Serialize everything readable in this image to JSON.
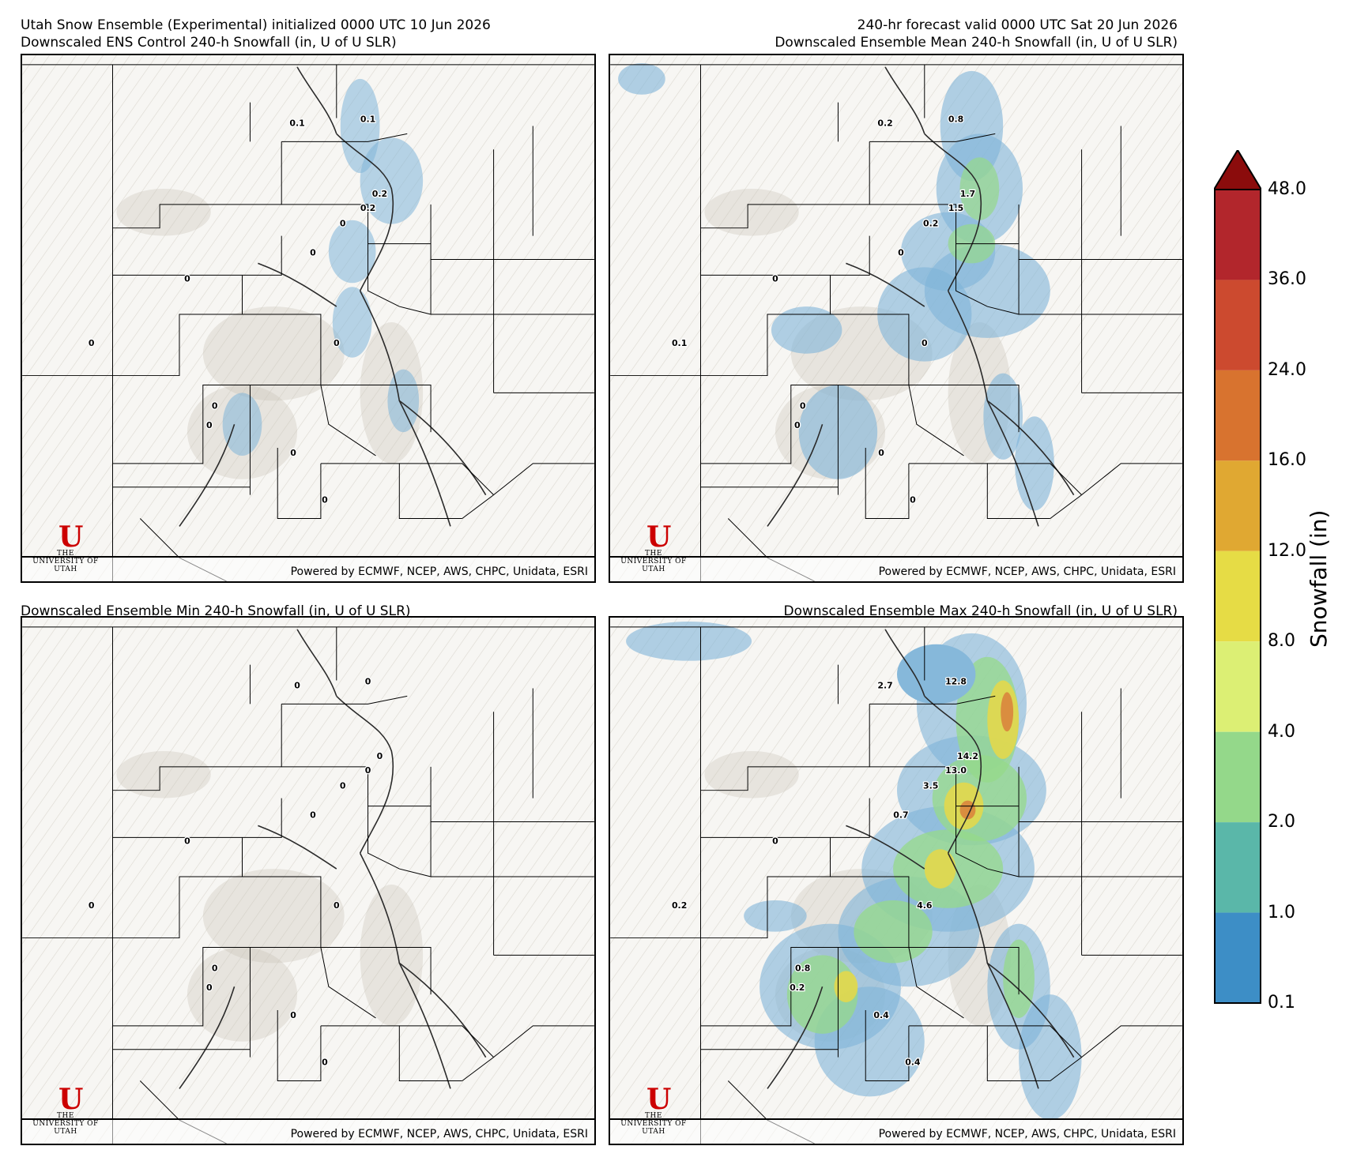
{
  "header": {
    "line1_left": "Utah Snow Ensemble (Experimental) initialized 0000 UTC 10 Jun 2026",
    "line2_left": "Downscaled ENS Control 240-h Snowfall (in, U of U SLR)",
    "line1_right": "240-hr forecast valid 0000 UTC Sat 20 Jun 2026",
    "line2_right": "Downscaled Ensemble Mean 240-h Snowfall (in, U of U SLR)"
  },
  "panels": [
    {
      "title": "Downscaled ENS Control 240-h Snowfall (in, U of U SLR)",
      "credit": "Powered by ECMWF, NCEP, AWS, CHPC, Unidata, ESRI",
      "logo_mark": "U",
      "logo_text": "THE UNIVERSITY OF UTAH",
      "labels": [
        "0.1",
        "0.1",
        "0.2",
        "0.2",
        "0",
        "0",
        "0",
        "0",
        "0",
        "0",
        "0",
        "0",
        "0"
      ]
    },
    {
      "title": "Downscaled Ensemble Mean 240-h Snowfall (in, U of U SLR)",
      "credit": "Powered by ECMWF, NCEP, AWS, CHPC, Unidata, ESRI",
      "logo_mark": "U",
      "logo_text": "THE UNIVERSITY OF UTAH",
      "labels": [
        "0.2",
        "0.8",
        "1.7",
        "1.5",
        "0.2",
        "0",
        "0",
        "0.1",
        "0",
        "0",
        "0",
        "0",
        "0"
      ]
    },
    {
      "title": "Downscaled Ensemble Min 240-h Snowfall (in, U of U SLR)",
      "credit": "Powered by ECMWF, NCEP, AWS, CHPC, Unidata, ESRI",
      "logo_mark": "U",
      "logo_text": "THE UNIVERSITY OF UTAH",
      "labels": [
        "0",
        "0",
        "0",
        "0",
        "0",
        "0",
        "0",
        "0",
        "0",
        "0",
        "0",
        "0",
        "0"
      ]
    },
    {
      "title": "Downscaled Ensemble Max 240-h Snowfall (in, U of U SLR)",
      "credit": "Powered by ECMWF, NCEP, AWS, CHPC, Unidata, ESRI",
      "logo_mark": "U",
      "logo_text": "THE UNIVERSITY OF UTAH",
      "labels": [
        "2.7",
        "12.8",
        "14.2",
        "13.0",
        "3.5",
        "0.7",
        "0",
        "0.2",
        "4.6",
        "0.8",
        "0.2",
        "0.4",
        "0.4"
      ]
    }
  ],
  "colorbar": {
    "label": "Snowfall (in)",
    "ticks": [
      "48.0",
      "36.0",
      "24.0",
      "16.0",
      "12.0",
      "8.0",
      "4.0",
      "2.0",
      "1.0",
      "0.1"
    ],
    "colors": [
      "#b2262c",
      "#cc4a2f",
      "#d8732f",
      "#e0a832",
      "#e6dc45",
      "#dcef74",
      "#94d88a",
      "#5ab7a9",
      "#3d8ec6"
    ],
    "extend_color": "#8b0c0c"
  },
  "map_colors": {
    "terrain": "#f7f6f3",
    "boundary": "#000000",
    "light_snow": "#7fb4d8",
    "moderate_snow": "#96d98a",
    "heavy_snow": "#e7d847",
    "very_heavy_snow": "#d97a3a"
  }
}
